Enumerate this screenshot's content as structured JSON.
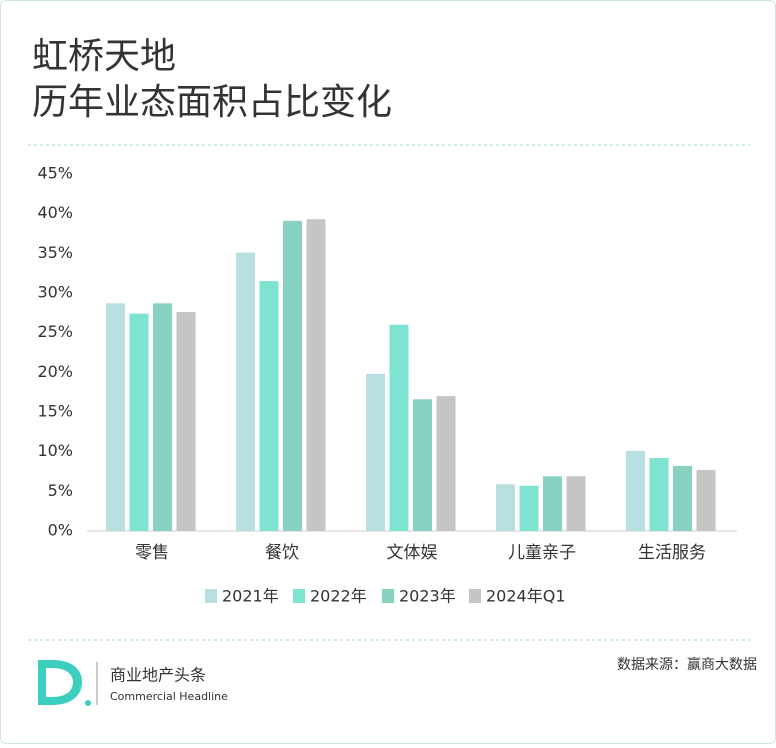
{
  "chart_data": {
    "type": "bar",
    "title": "虹桥天地",
    "subtitle": "历年业态面积占比变化",
    "categories": [
      "零售",
      "餐饮",
      "文体娱",
      "儿童亲子",
      "生活服务"
    ],
    "series": [
      {
        "name": "2021年",
        "color": "#b8e0e0",
        "values": [
          28.7,
          35.1,
          19.8,
          5.9,
          10.1
        ]
      },
      {
        "name": "2022年",
        "color": "#7ee3d1",
        "values": [
          27.4,
          31.5,
          26.0,
          5.7,
          9.2
        ]
      },
      {
        "name": "2023年",
        "color": "#89d2c1",
        "values": [
          28.7,
          39.1,
          16.6,
          6.9,
          8.2
        ]
      },
      {
        "name": "2024年Q1",
        "color": "#c5c5c5",
        "values": [
          27.6,
          39.3,
          17.0,
          6.9,
          7.7
        ]
      }
    ],
    "ylim": [
      0,
      45
    ],
    "yticks": [
      {
        "value": 0,
        "label": "0%"
      },
      {
        "value": 5,
        "label": "5%"
      },
      {
        "value": 10,
        "label": "10%"
      },
      {
        "value": 15,
        "label": "15%"
      },
      {
        "value": 20,
        "label": "20%"
      },
      {
        "value": 25,
        "label": "25%"
      },
      {
        "value": 30,
        "label": "30%"
      },
      {
        "value": 35,
        "label": "35%"
      },
      {
        "value": 40,
        "label": "40%"
      },
      {
        "value": 45,
        "label": "45%"
      }
    ],
    "grid": false,
    "legend": "bottom"
  },
  "footer": {
    "brand": "商业地产头条",
    "tagline": "Commercial Headline",
    "source": "数据来源：赢商大数据"
  }
}
